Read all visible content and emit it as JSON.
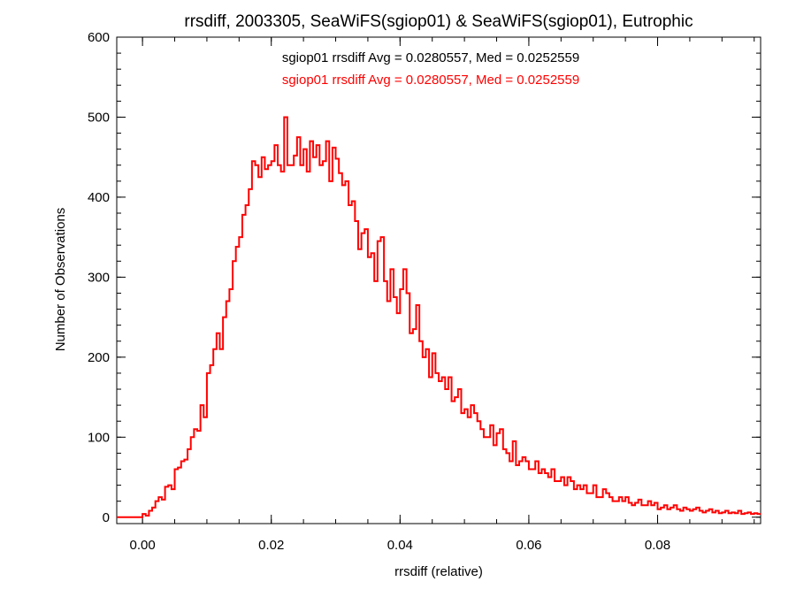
{
  "chart_data": {
    "type": "histogram",
    "title": "rrsdiff, 2003305, SeaWiFS(sgiop01) & SeaWiFS(sgiop01), Eutrophic",
    "xlabel": "rrsdiff (relative)",
    "ylabel": "Number of Observations",
    "xlim": [
      -0.004,
      0.096
    ],
    "ylim": [
      -8,
      600
    ],
    "xticks": [
      0.0,
      0.02,
      0.04,
      0.06,
      0.08
    ],
    "xtick_labels": [
      "0.00",
      "0.02",
      "0.04",
      "0.06",
      "0.08"
    ],
    "yticks": [
      0,
      100,
      200,
      300,
      400,
      500,
      600
    ],
    "ytick_labels": [
      "0",
      "100",
      "200",
      "300",
      "400",
      "500",
      "600"
    ],
    "bin_width": 0.0005,
    "bin_start": -0.004,
    "annotations": [
      {
        "text": "sgiop01 rrsdiff Avg = 0.0280557, Med = 0.0252559",
        "color": "#000000"
      },
      {
        "text": "sgiop01 rrsdiff Avg = 0.0280557, Med = 0.0252559",
        "color": "#ff0000"
      }
    ],
    "series": [
      {
        "color": "#ff0000",
        "counts": [
          0,
          0,
          0,
          0,
          0,
          0,
          0,
          0,
          4,
          2,
          8,
          12,
          20,
          25,
          22,
          38,
          40,
          35,
          60,
          62,
          70,
          72,
          85,
          100,
          110,
          108,
          140,
          125,
          180,
          190,
          210,
          230,
          210,
          250,
          270,
          285,
          320,
          338,
          350,
          378,
          390,
          410,
          445,
          440,
          425,
          450,
          435,
          440,
          445,
          465,
          440,
          432,
          500,
          440,
          440,
          452,
          475,
          440,
          460,
          432,
          470,
          450,
          465,
          440,
          445,
          470,
          420,
          462,
          448,
          430,
          415,
          420,
          390,
          395,
          370,
          335,
          355,
          360,
          325,
          330,
          295,
          345,
          350,
          295,
          270,
          310,
          275,
          255,
          285,
          310,
          280,
          230,
          235,
          265,
          220,
          200,
          210,
          175,
          205,
          180,
          170,
          175,
          160,
          175,
          145,
          150,
          160,
          130,
          135,
          125,
          140,
          130,
          120,
          110,
          100,
          100,
          115,
          90,
          105,
          110,
          85,
          80,
          70,
          95,
          65,
          70,
          75,
          70,
          60,
          60,
          70,
          55,
          60,
          55,
          50,
          60,
          45,
          45,
          50,
          40,
          50,
          45,
          35,
          40,
          35,
          40,
          30,
          30,
          40,
          25,
          25,
          35,
          30,
          25,
          20,
          20,
          25,
          20,
          25,
          18,
          15,
          18,
          22,
          15,
          15,
          20,
          15,
          18,
          10,
          12,
          15,
          10,
          12,
          15,
          10,
          8,
          12,
          10,
          8,
          10,
          12,
          8,
          6,
          8,
          10,
          6,
          8,
          5,
          6,
          8,
          5,
          6,
          5,
          8,
          4,
          5,
          6,
          4,
          5,
          4
        ]
      }
    ]
  }
}
